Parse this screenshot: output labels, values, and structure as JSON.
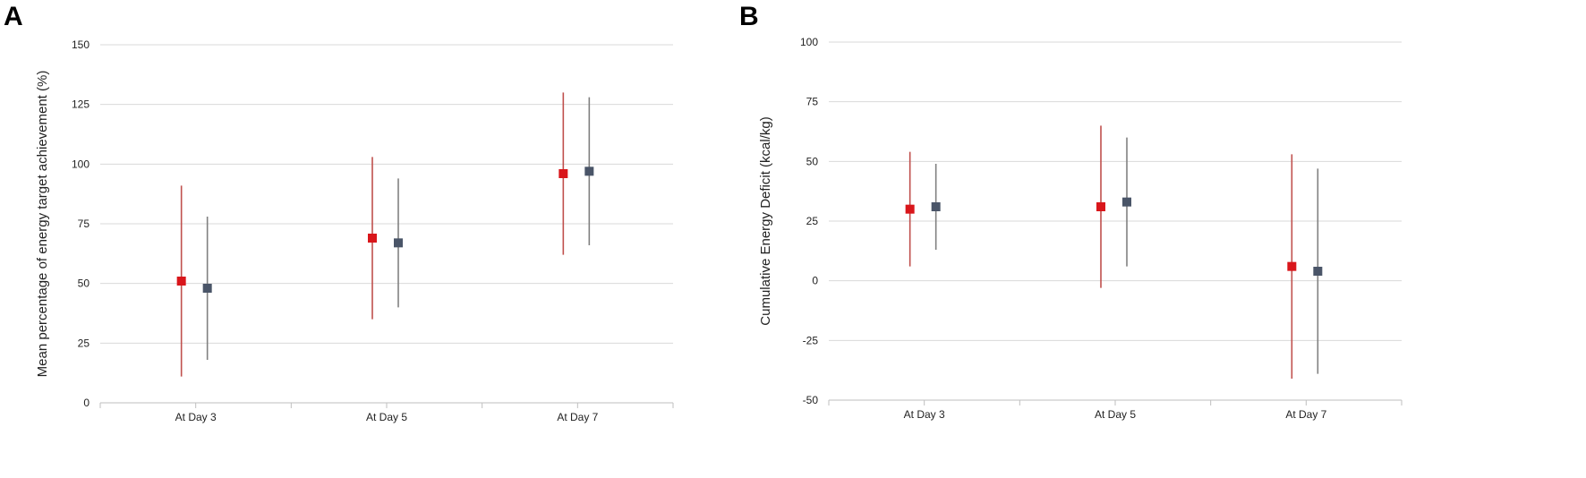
{
  "panels": [
    {
      "letter": "A"
    },
    {
      "letter": "B"
    }
  ],
  "colors": {
    "series1": "#d9161b",
    "series2": "#4a5568",
    "whisker1": "#c0504d",
    "whisker2": "#808080"
  },
  "chart_data": [
    {
      "type": "scatter",
      "title": "",
      "xlabel": "",
      "ylabel": "Mean percentage of energy target achievement (%)",
      "categories": [
        "At Day 3",
        "At Day 5",
        "At Day 7"
      ],
      "ylim": [
        0,
        150
      ],
      "yticks": [
        0,
        25,
        50,
        75,
        100,
        125,
        150
      ],
      "grid": true,
      "series": [
        {
          "values": [
            51,
            69,
            96
          ],
          "lower": [
            11,
            35,
            62
          ],
          "upper": [
            91,
            103,
            130
          ]
        },
        {
          "values": [
            48,
            67,
            97
          ],
          "lower": [
            18,
            40,
            66
          ],
          "upper": [
            78,
            94,
            128
          ]
        }
      ]
    },
    {
      "type": "scatter",
      "title": "",
      "xlabel": "",
      "ylabel": "Cumulative Energy Deficit (kcal/kg)",
      "categories": [
        "At Day 3",
        "At Day 5",
        "At Day 7"
      ],
      "ylim": [
        -50,
        100
      ],
      "yticks": [
        -50,
        -25,
        0,
        25,
        50,
        75,
        100
      ],
      "grid": true,
      "series": [
        {
          "values": [
            30,
            31,
            6
          ],
          "lower": [
            6,
            -3,
            -41
          ],
          "upper": [
            54,
            65,
            53
          ]
        },
        {
          "values": [
            31,
            33,
            4
          ],
          "lower": [
            13,
            6,
            -39
          ],
          "upper": [
            49,
            60,
            47
          ]
        }
      ]
    }
  ]
}
